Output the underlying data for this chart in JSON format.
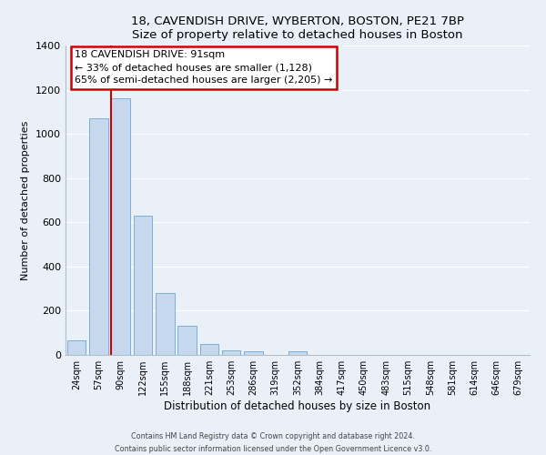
{
  "title1": "18, CAVENDISH DRIVE, WYBERTON, BOSTON, PE21 7BP",
  "title2": "Size of property relative to detached houses in Boston",
  "xlabel": "Distribution of detached houses by size in Boston",
  "ylabel": "Number of detached properties",
  "bar_labels": [
    "24sqm",
    "57sqm",
    "90sqm",
    "122sqm",
    "155sqm",
    "188sqm",
    "221sqm",
    "253sqm",
    "286sqm",
    "319sqm",
    "352sqm",
    "384sqm",
    "417sqm",
    "450sqm",
    "483sqm",
    "515sqm",
    "548sqm",
    "581sqm",
    "614sqm",
    "646sqm",
    "679sqm"
  ],
  "bar_values": [
    65,
    1070,
    1160,
    632,
    278,
    130,
    48,
    20,
    18,
    0,
    18,
    0,
    0,
    0,
    0,
    0,
    0,
    0,
    0,
    0,
    0
  ],
  "bar_color": "#c5d8ed",
  "bar_edge_color": "#7bafd4",
  "property_line_color": "#cc0000",
  "ylim": [
    0,
    1400
  ],
  "yticks": [
    0,
    200,
    400,
    600,
    800,
    1000,
    1200,
    1400
  ],
  "annotation_title": "18 CAVENDISH DRIVE: 91sqm",
  "annotation_line1": "← 33% of detached houses are smaller (1,128)",
  "annotation_line2": "65% of semi-detached houses are larger (2,205) →",
  "annotation_box_color": "#ffffff",
  "annotation_box_edge": "#cc0000",
  "footer1": "Contains HM Land Registry data © Crown copyright and database right 2024.",
  "footer2": "Contains public sector information licensed under the Open Government Licence v3.0.",
  "background_color": "#eaf0f8",
  "plot_background": "#eaf0f8",
  "grid_color": "#ffffff",
  "spine_color": "#b0bec5"
}
